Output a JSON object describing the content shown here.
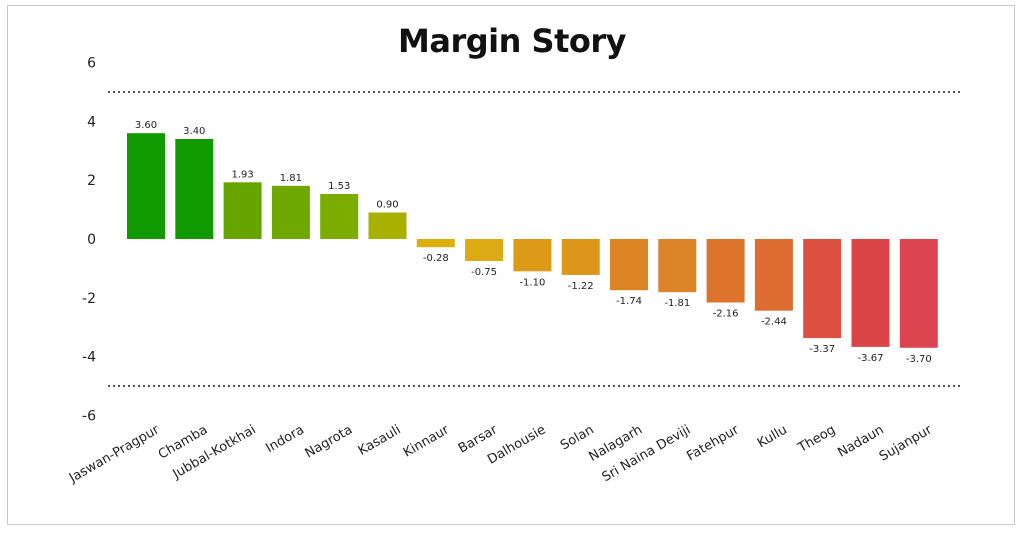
{
  "chart_data": {
    "type": "bar",
    "title": "Margin Story",
    "xlabel": "",
    "ylabel": "",
    "ylim": [
      -6,
      6
    ],
    "yticks": [
      6,
      4,
      2,
      0,
      -2,
      -4,
      -6
    ],
    "reference_lines": [
      5,
      -5
    ],
    "grid": false,
    "categories": [
      "Jaswan-Pragpur",
      "Chamba",
      "Jubbal-Kotkhai",
      "Indora",
      "Nagrota",
      "Kasauli",
      "Kinnaur",
      "Barsar",
      "Dalhousie",
      "Solan",
      "Nalagarh",
      "Sri Naina Deviji",
      "Fatehpur",
      "Kullu",
      "Theog",
      "Nadaun",
      "Sujanpur"
    ],
    "values": [
      3.6,
      3.4,
      1.93,
      1.81,
      1.53,
      0.9,
      -0.28,
      -0.75,
      -1.1,
      -1.22,
      -1.74,
      -1.81,
      -2.16,
      -2.44,
      -3.37,
      -3.67,
      -3.7
    ],
    "value_labels": [
      "3.60",
      "3.40",
      "1.93",
      "1.81",
      "1.53",
      "0.90",
      "-0.28",
      "-0.75",
      "-1.10",
      "-1.22",
      "-1.74",
      "-1.81",
      "-2.16",
      "-2.44",
      "-3.37",
      "-3.67",
      "-3.70"
    ],
    "colors": [
      "#109a00",
      "#109a00",
      "#66a400",
      "#6ea800",
      "#7aad00",
      "#a8b000",
      "#dcb00c",
      "#dcaa14",
      "#dc9a18",
      "#dc961a",
      "#dc8424",
      "#dc8428",
      "#dc742c",
      "#dc6c30",
      "#dc5040",
      "#dc4548",
      "#dc4450"
    ]
  }
}
